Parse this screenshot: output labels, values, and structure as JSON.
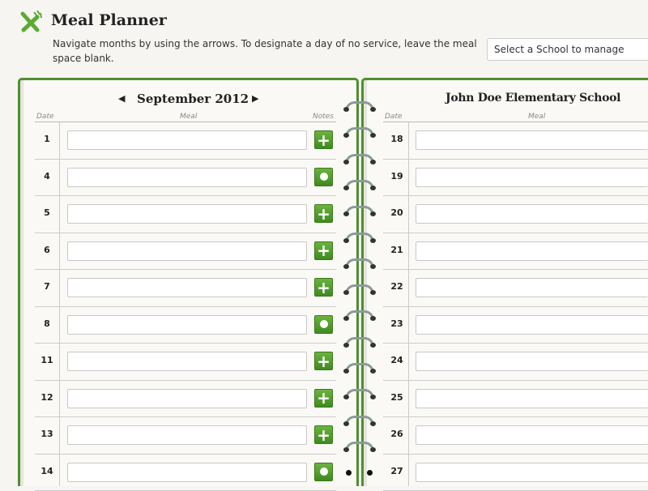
{
  "header": {
    "title": "Meal Planner",
    "description": "Navigate months by using the arrows. To designate a day of no service, leave the meal space blank.",
    "school_select_placeholder": "Select a School to manage",
    "accent": "#4f8f2e"
  },
  "left_page": {
    "month": "September 2012",
    "columns": {
      "date": "Date",
      "meal": "Meal",
      "notes": "Notes"
    },
    "rows": [
      {
        "date": "1",
        "notes_icon": "plus"
      },
      {
        "date": "4",
        "notes_icon": "circle"
      },
      {
        "date": "5",
        "notes_icon": "plus"
      },
      {
        "date": "6",
        "notes_icon": "plus"
      },
      {
        "date": "7",
        "notes_icon": "plus"
      },
      {
        "date": "8",
        "notes_icon": "circle"
      },
      {
        "date": "11",
        "notes_icon": "plus"
      },
      {
        "date": "12",
        "notes_icon": "plus"
      },
      {
        "date": "13",
        "notes_icon": "plus"
      },
      {
        "date": "14",
        "notes_icon": "circle"
      }
    ]
  },
  "right_page": {
    "school": "John Doe Elementary School",
    "columns": {
      "date": "Date",
      "meal": "Meal"
    },
    "rows": [
      {
        "date": "18"
      },
      {
        "date": "19"
      },
      {
        "date": "20"
      },
      {
        "date": "21"
      },
      {
        "date": "22"
      },
      {
        "date": "23"
      },
      {
        "date": "24"
      },
      {
        "date": "25"
      },
      {
        "date": "26"
      },
      {
        "date": "27"
      }
    ]
  }
}
